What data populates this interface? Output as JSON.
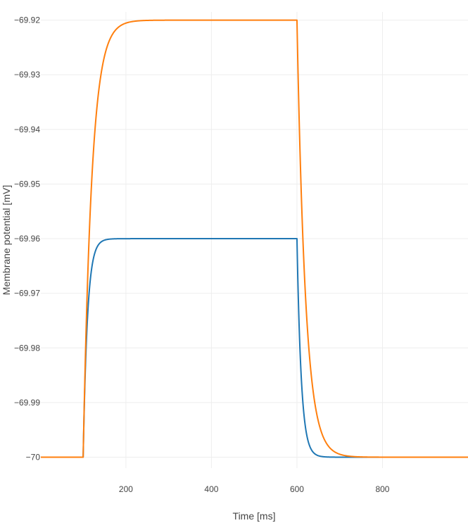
{
  "chart_data": {
    "type": "line",
    "xlabel": "Time [ms]",
    "ylabel": "Membrane potential [mV]",
    "xlim": [
      1,
      1000
    ],
    "ylim": [
      -70.002,
      -69.9185
    ],
    "xticks": [
      200,
      400,
      600,
      800
    ],
    "yticks": [
      -70,
      -69.99,
      -69.98,
      -69.97,
      -69.96,
      -69.95,
      -69.94,
      -69.93,
      -69.92
    ],
    "ytick_labels": [
      "−70",
      "−69.99",
      "−69.98",
      "−69.97",
      "−69.96",
      "−69.95",
      "−69.94",
      "−69.93",
      "−69.92"
    ],
    "grid": true,
    "legend": "none",
    "series": [
      {
        "color": "#1f77b4",
        "stim_on": 100,
        "stim_off": 600,
        "baseline": -70,
        "plateau": -69.96,
        "tau_ms": 10
      },
      {
        "color": "#ff7f0e",
        "stim_on": 100,
        "stim_off": 600,
        "baseline": -70,
        "plateau": -69.92,
        "tau_ms": 20
      }
    ]
  }
}
